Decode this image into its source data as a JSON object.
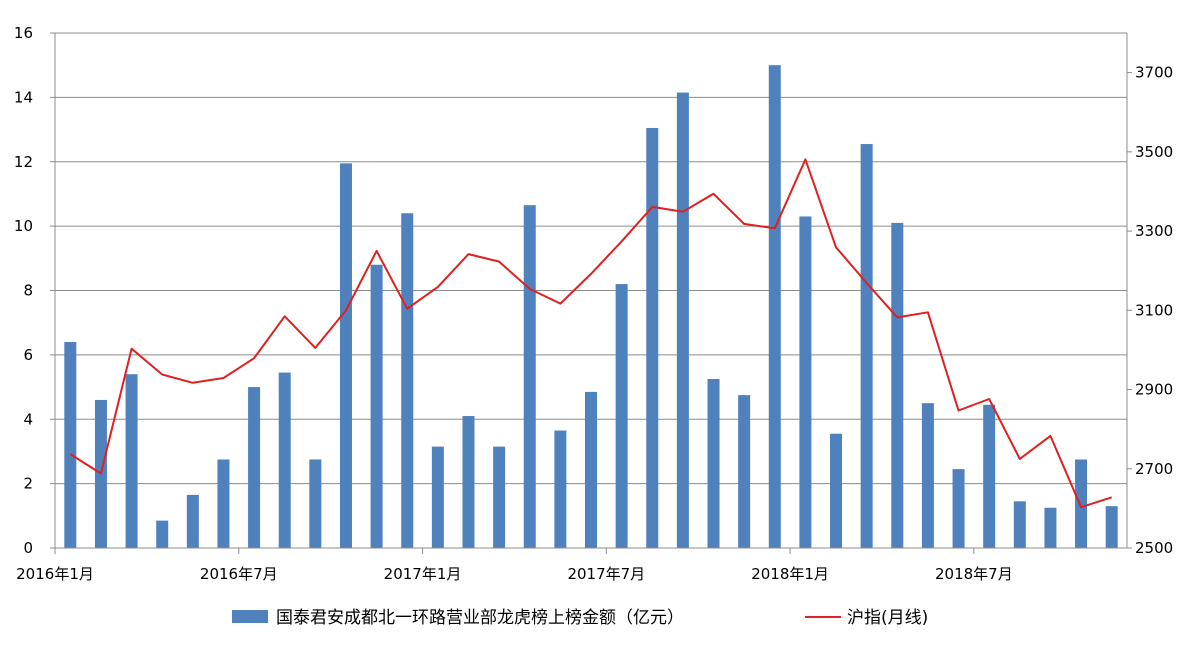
{
  "chart_data": {
    "type": "bar",
    "title": "",
    "x_tick_labels": [
      "2016年1月",
      "2016年7月",
      "2017年1月",
      "2017年7月",
      "2018年1月",
      "2018年7月"
    ],
    "x_tick_month_index": [
      0,
      6,
      12,
      18,
      24,
      30
    ],
    "months": [
      "2016-01",
      "2016-02",
      "2016-03",
      "2016-04",
      "2016-05",
      "2016-06",
      "2016-07",
      "2016-08",
      "2016-09",
      "2016-10",
      "2016-11",
      "2016-12",
      "2017-01",
      "2017-02",
      "2017-03",
      "2017-04",
      "2017-05",
      "2017-06",
      "2017-07",
      "2017-08",
      "2017-09",
      "2017-10",
      "2017-11",
      "2017-12",
      "2018-01",
      "2018-02",
      "2018-03",
      "2018-04",
      "2018-05",
      "2018-06",
      "2018-07",
      "2018-08",
      "2018-09",
      "2018-10",
      "2018-11"
    ],
    "series": [
      {
        "name": "国泰君安成都北一环路营业部龙虎榜上榜金额（亿元）",
        "type": "bar",
        "axis": "left",
        "color": "#4f81bd",
        "values": [
          6.4,
          4.6,
          5.4,
          0.85,
          1.65,
          2.75,
          5.0,
          5.45,
          2.75,
          11.95,
          8.8,
          10.4,
          3.15,
          4.1,
          3.15,
          10.65,
          3.65,
          4.85,
          8.2,
          13.05,
          14.15,
          5.25,
          4.75,
          15.0,
          10.3,
          3.55,
          12.55,
          10.1,
          4.5,
          2.45,
          4.45,
          1.45,
          1.25,
          2.75,
          1.3
        ]
      },
      {
        "name": "沪指(月线)",
        "type": "line",
        "axis": "right",
        "color": "#e02020",
        "values": [
          2737,
          2688,
          3003,
          2938,
          2917,
          2929,
          2979,
          3085,
          3005,
          3100,
          3250,
          3104,
          3159,
          3242,
          3223,
          3154,
          3117,
          3192,
          3274,
          3361,
          3349,
          3394,
          3318,
          3307,
          3481,
          3259,
          3169,
          3082,
          3095,
          2847,
          2876,
          2725,
          2783,
          2603,
          2628
        ]
      }
    ],
    "y_left": {
      "min": 0,
      "max": 16,
      "ticks": [
        0,
        2,
        4,
        6,
        8,
        10,
        12,
        14,
        16
      ]
    },
    "y_right": {
      "min": 2500,
      "max": 3800,
      "ticks": [
        2500,
        2700,
        2900,
        3100,
        3300,
        3500,
        3700
      ]
    },
    "grid": true,
    "legend": "bottom"
  }
}
